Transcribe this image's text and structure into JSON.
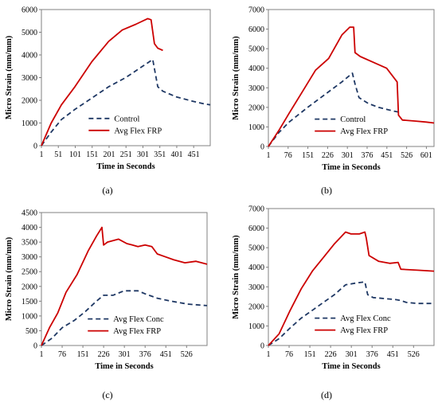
{
  "colors": {
    "control": "#1f3864",
    "frp": "#cc0000",
    "frame": "#808080"
  },
  "chart_data": [
    {
      "type": "line",
      "caption": "(a)",
      "xlabel": "Time in Seconds",
      "ylabel": "Micro Strain (mm/mm)",
      "xlim": [
        1,
        500
      ],
      "ylim": [
        0,
        6000
      ],
      "xticks": [
        "1",
        "51",
        "101",
        "151",
        "201",
        "251",
        "301",
        "351",
        "401",
        "451"
      ],
      "yticks": [
        "0",
        "1000",
        "2000",
        "3000",
        "4000",
        "5000",
        "6000"
      ],
      "legend_position": "lower-center",
      "series": [
        {
          "name": "Control",
          "style": "dashed",
          "x": [
            1,
            30,
            60,
            100,
            150,
            200,
            250,
            300,
            330,
            345,
            360,
            400,
            450,
            480,
            500
          ],
          "y": [
            0,
            600,
            1150,
            1600,
            2100,
            2600,
            3000,
            3500,
            3800,
            2600,
            2400,
            2150,
            1950,
            1850,
            1800
          ]
        },
        {
          "name": "Avg Flex FRP",
          "style": "solid",
          "x": [
            1,
            30,
            60,
            100,
            150,
            200,
            240,
            280,
            315,
            325,
            335,
            345,
            360
          ],
          "y": [
            0,
            1000,
            1800,
            2600,
            3700,
            4600,
            5100,
            5350,
            5600,
            5550,
            4500,
            4300,
            4200
          ]
        }
      ]
    },
    {
      "type": "line",
      "caption": "(b)",
      "xlabel": "Time in Seconds",
      "ylabel": "Micro Strain (mm/mm)",
      "xlim": [
        1,
        630
      ],
      "ylim": [
        0,
        7000
      ],
      "xticks": [
        "1",
        "76",
        "151",
        "226",
        "301",
        "376",
        "451",
        "526",
        "601"
      ],
      "yticks": [
        "0",
        "1000",
        "2000",
        "3000",
        "4000",
        "5000",
        "6000",
        "7000"
      ],
      "legend_position": "lower-center",
      "series": [
        {
          "name": "Control",
          "style": "dashed",
          "x": [
            1,
            40,
            80,
            150,
            220,
            280,
            320,
            330,
            345,
            380,
            420,
            480,
            500
          ],
          "y": [
            0,
            700,
            1250,
            2000,
            2700,
            3300,
            3750,
            3200,
            2500,
            2200,
            2000,
            1800,
            1750
          ]
        },
        {
          "name": "Avg Flex FRP",
          "style": "solid",
          "x": [
            1,
            40,
            80,
            130,
            180,
            230,
            280,
            310,
            325,
            330,
            350,
            400,
            450,
            490,
            495,
            510,
            560,
            600,
            630
          ],
          "y": [
            0,
            800,
            1700,
            2800,
            3900,
            4500,
            5700,
            6100,
            6100,
            4800,
            4600,
            4300,
            4000,
            3300,
            1600,
            1350,
            1300,
            1250,
            1200
          ]
        }
      ]
    },
    {
      "type": "line",
      "caption": "(c)",
      "xlabel": "Time in Seconds",
      "ylabel": "Micro Strain (mm/mm)",
      "xlim": [
        1,
        600
      ],
      "ylim": [
        0,
        4500
      ],
      "xticks": [
        "1",
        "76",
        "151",
        "226",
        "301",
        "376",
        "451",
        "526"
      ],
      "yticks": [
        "0",
        "500",
        "1000",
        "1500",
        "2000",
        "2500",
        "3000",
        "3500",
        "4000",
        "4500"
      ],
      "legend_position": "lower-center",
      "series": [
        {
          "name": "Avg Flex Conc",
          "style": "dashed",
          "x": [
            1,
            40,
            76,
            120,
            160,
            200,
            226,
            260,
            300,
            350,
            376,
            420,
            470,
            530,
            560,
            600
          ],
          "y": [
            0,
            250,
            600,
            850,
            1150,
            1500,
            1700,
            1700,
            1850,
            1850,
            1750,
            1600,
            1500,
            1400,
            1380,
            1350
          ]
        },
        {
          "name": "Avg Flex FRP",
          "style": "solid",
          "x": [
            1,
            30,
            60,
            90,
            130,
            170,
            200,
            220,
            226,
            240,
            280,
            310,
            330,
            350,
            376,
            400,
            420,
            450,
            480,
            520,
            560,
            600
          ],
          "y": [
            0,
            600,
            1100,
            1800,
            2400,
            3200,
            3700,
            4000,
            3400,
            3500,
            3600,
            3450,
            3400,
            3350,
            3400,
            3350,
            3100,
            3000,
            2900,
            2800,
            2850,
            2750
          ]
        }
      ]
    },
    {
      "type": "line",
      "caption": "(d)",
      "xlabel": "Time in Seconds",
      "ylabel": "Micro Strain (mm/mm)",
      "xlim": [
        1,
        600
      ],
      "ylim": [
        0,
        7000
      ],
      "xticks": [
        "1",
        "76",
        "151",
        "226",
        "301",
        "376",
        "451",
        "526"
      ],
      "yticks": [
        "0",
        "1000",
        "2000",
        "3000",
        "4000",
        "5000",
        "6000",
        "7000"
      ],
      "legend_position": "lower-center",
      "series": [
        {
          "name": "Avg Flex Conc",
          "style": "dashed",
          "x": [
            1,
            40,
            80,
            120,
            160,
            200,
            240,
            280,
            320,
            350,
            360,
            380,
            420,
            460,
            480,
            500,
            540,
            600
          ],
          "y": [
            0,
            350,
            900,
            1400,
            1800,
            2200,
            2600,
            3100,
            3200,
            3250,
            2600,
            2450,
            2400,
            2350,
            2300,
            2200,
            2150,
            2150
          ]
        },
        {
          "name": "Avg Flex FRP",
          "style": "solid",
          "x": [
            1,
            40,
            80,
            120,
            160,
            200,
            240,
            280,
            300,
            330,
            350,
            355,
            365,
            400,
            440,
            470,
            480,
            540,
            600
          ],
          "y": [
            0,
            600,
            1800,
            2900,
            3800,
            4500,
            5200,
            5800,
            5700,
            5700,
            5800,
            5500,
            4600,
            4300,
            4200,
            4250,
            3900,
            3850,
            3800
          ]
        }
      ]
    }
  ]
}
